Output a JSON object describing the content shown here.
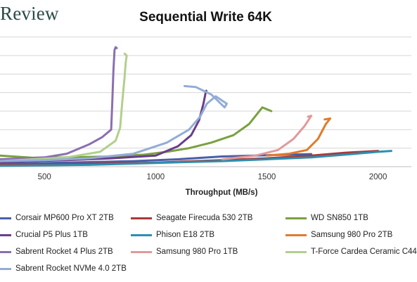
{
  "header": {
    "brand": "Review"
  },
  "chart_data": {
    "type": "line",
    "title": "Sequential Write 64K",
    "xlabel": "Throughput (MB/s)",
    "ylabel": "",
    "x_ticks": [
      500,
      1000,
      1500,
      2000
    ],
    "xlim": [
      300,
      2150
    ],
    "ylim": [
      0,
      7.1
    ],
    "grid": true,
    "legend_position": "bottom",
    "series": [
      {
        "name": "Corsair MP600 Pro XT 2TB",
        "color": "#4a5fa8",
        "points": [
          [
            300,
            0.15
          ],
          [
            600,
            0.22
          ],
          [
            900,
            0.3
          ],
          [
            1100,
            0.4
          ],
          [
            1300,
            0.55
          ],
          [
            1500,
            0.62
          ],
          [
            1700,
            0.68
          ]
        ]
      },
      {
        "name": "Seagate Firecuda 530 2TB",
        "color": "#a83a3a",
        "points": [
          [
            300,
            0.1
          ],
          [
            700,
            0.15
          ],
          [
            1000,
            0.22
          ],
          [
            1300,
            0.35
          ],
          [
            1500,
            0.45
          ],
          [
            1700,
            0.6
          ],
          [
            1850,
            0.75
          ],
          [
            2000,
            0.85
          ]
        ]
      },
      {
        "name": "WD SN850 1TB",
        "color": "#7aa040",
        "points": [
          [
            300,
            0.6
          ],
          [
            450,
            0.48
          ],
          [
            600,
            0.5
          ],
          [
            800,
            0.55
          ],
          [
            950,
            0.65
          ],
          [
            1050,
            0.8
          ],
          [
            1150,
            1.0
          ],
          [
            1250,
            1.3
          ],
          [
            1350,
            1.7
          ],
          [
            1420,
            2.3
          ],
          [
            1460,
            2.9
          ],
          [
            1480,
            3.2
          ],
          [
            1500,
            3.1
          ],
          [
            1520,
            3.0
          ]
        ]
      },
      {
        "name": "Crucial P5 Plus 1TB",
        "color": "#6a3d8a",
        "points": [
          [
            300,
            0.25
          ],
          [
            600,
            0.35
          ],
          [
            800,
            0.45
          ],
          [
            1000,
            0.6
          ],
          [
            1100,
            1.1
          ],
          [
            1160,
            1.7
          ],
          [
            1195,
            2.5
          ],
          [
            1215,
            3.4
          ],
          [
            1225,
            4.0
          ],
          [
            1228,
            4.1
          ]
        ]
      },
      {
        "name": "Phison E18 2TB",
        "color": "#2d8fb0",
        "points": [
          [
            300,
            0.05
          ],
          [
            700,
            0.1
          ],
          [
            1000,
            0.2
          ],
          [
            1300,
            0.3
          ],
          [
            1500,
            0.4
          ],
          [
            1700,
            0.5
          ],
          [
            1900,
            0.7
          ],
          [
            2000,
            0.8
          ],
          [
            2060,
            0.85
          ]
        ]
      },
      {
        "name": "Samsung 980 Pro 2TB",
        "color": "#e07b2a",
        "points": [
          [
            1500,
            0.6
          ],
          [
            1600,
            0.7
          ],
          [
            1680,
            0.9
          ],
          [
            1730,
            1.5
          ],
          [
            1765,
            2.3
          ],
          [
            1785,
            2.6
          ],
          [
            1760,
            2.55
          ]
        ]
      },
      {
        "name": "Sabrent Rocket 4 Plus 2TB",
        "color": "#8a6fb0",
        "points": [
          [
            300,
            0.4
          ],
          [
            500,
            0.5
          ],
          [
            600,
            0.7
          ],
          [
            700,
            1.2
          ],
          [
            760,
            1.6
          ],
          [
            800,
            2.0
          ],
          [
            805,
            3.5
          ],
          [
            810,
            5.2
          ],
          [
            815,
            6.3
          ],
          [
            820,
            6.45
          ],
          [
            825,
            6.4
          ]
        ]
      },
      {
        "name": "Samsung 980 Pro 1TB",
        "color": "#e09a9a",
        "points": [
          [
            1300,
            0.4
          ],
          [
            1450,
            0.6
          ],
          [
            1550,
            0.9
          ],
          [
            1620,
            1.5
          ],
          [
            1670,
            2.2
          ],
          [
            1700,
            2.75
          ],
          [
            1685,
            2.7
          ]
        ]
      },
      {
        "name": "T-Force Cardea Ceramic C44",
        "color": "#b2cf8e",
        "points": [
          [
            300,
            0.3
          ],
          [
            600,
            0.5
          ],
          [
            750,
            0.8
          ],
          [
            820,
            1.4
          ],
          [
            840,
            2.1
          ],
          [
            850,
            3.5
          ],
          [
            860,
            4.8
          ],
          [
            865,
            5.6
          ],
          [
            870,
            6.0
          ],
          [
            860,
            6.1
          ]
        ]
      },
      {
        "name": "Sabrent Rocket NVMe 4.0 2TB",
        "color": "#93acd6",
        "points": [
          [
            300,
            0.3
          ],
          [
            500,
            0.35
          ],
          [
            700,
            0.45
          ],
          [
            900,
            0.7
          ],
          [
            1050,
            1.3
          ],
          [
            1150,
            2.0
          ],
          [
            1200,
            2.7
          ],
          [
            1230,
            3.4
          ],
          [
            1270,
            3.8
          ],
          [
            1320,
            3.4
          ],
          [
            1310,
            3.2
          ],
          [
            1250,
            3.9
          ],
          [
            1180,
            4.3
          ],
          [
            1130,
            4.35
          ]
        ]
      }
    ]
  }
}
